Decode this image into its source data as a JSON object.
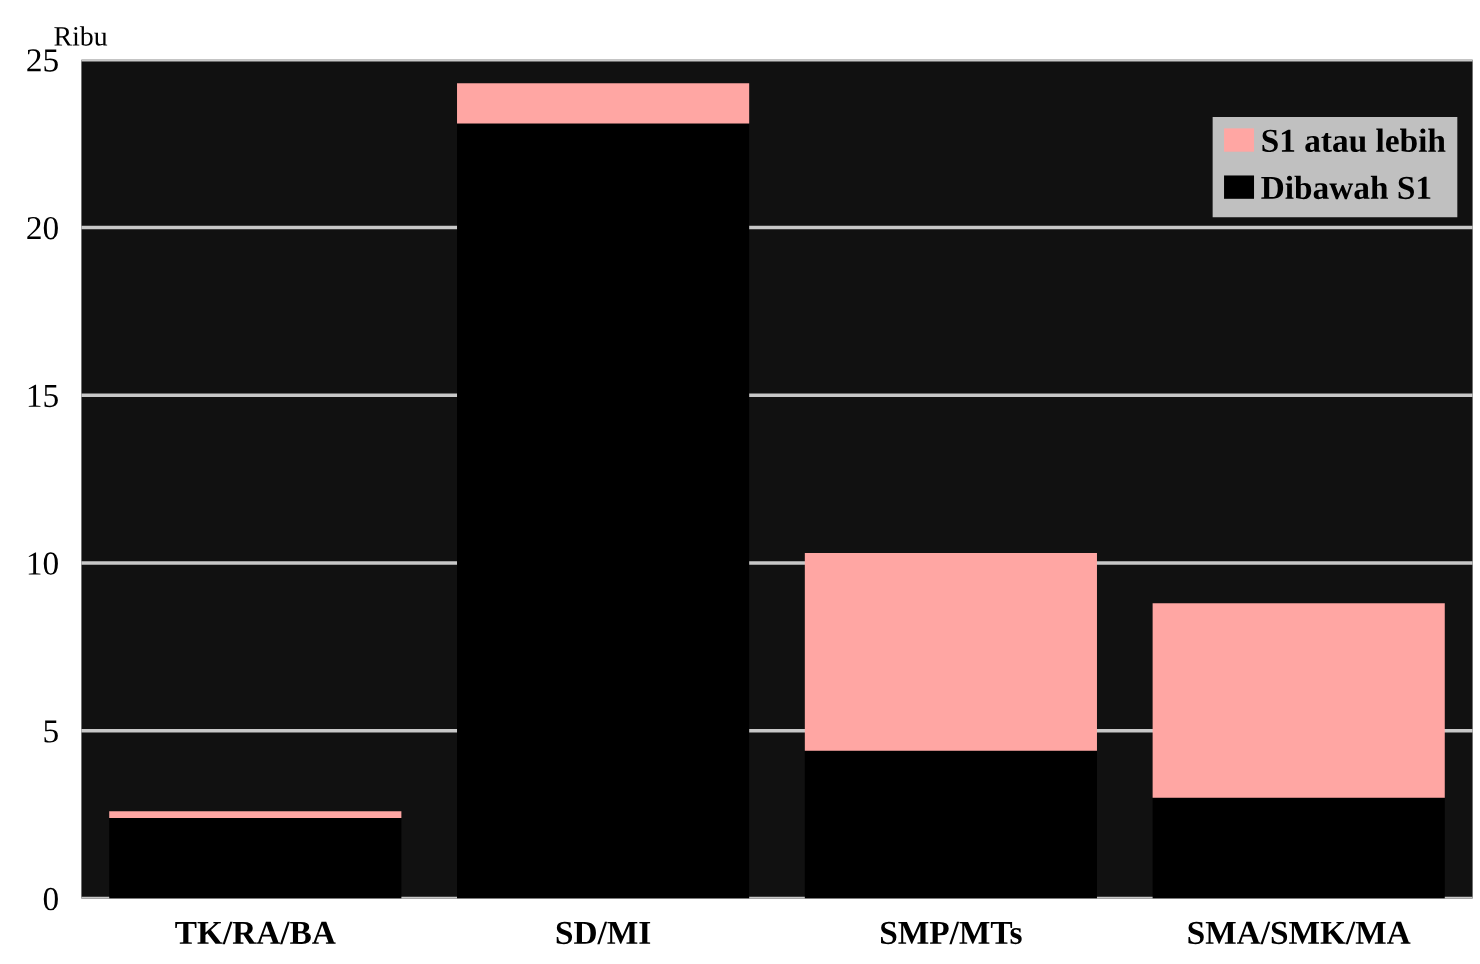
{
  "chart_data": {
    "type": "bar",
    "stacked": true,
    "ylabel": "Ribu",
    "categories": [
      "TK/RA/BA",
      "SD/MI",
      "SMP/MTs",
      "SMA/SMK/MA"
    ],
    "series": [
      {
        "name": "Dibawah S1",
        "color": "#000000",
        "values": [
          2.4,
          23.1,
          4.4,
          3.0
        ]
      },
      {
        "name": "S1 atau lebih",
        "color": "#ffa6a3",
        "values": [
          0.2,
          1.2,
          5.9,
          5.8
        ]
      }
    ],
    "ylim": [
      0,
      25
    ],
    "yticks": [
      0,
      5,
      10,
      15,
      20,
      25
    ],
    "grid": "y",
    "legend": "top right"
  }
}
